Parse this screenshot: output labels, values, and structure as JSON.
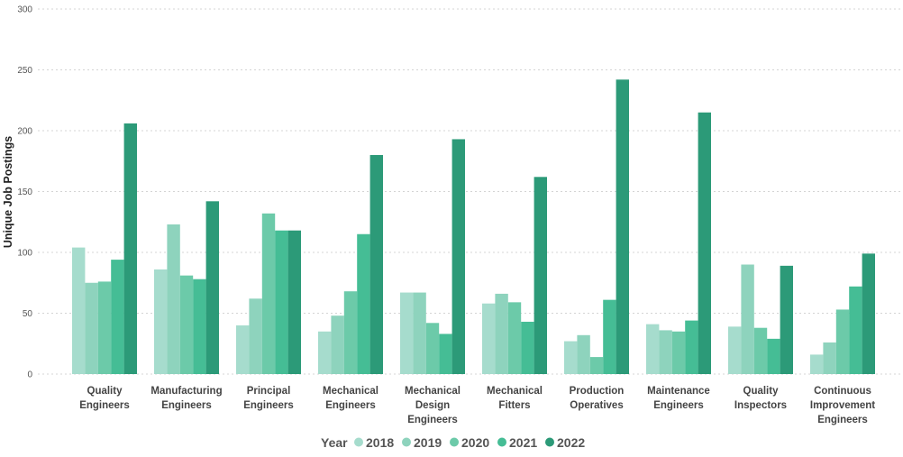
{
  "chart_data": {
    "type": "bar",
    "ylabel": "Unique Job Postings",
    "xlabel": "",
    "ylim": [
      0,
      300
    ],
    "yticks": [
      0,
      50,
      100,
      150,
      200,
      250,
      300
    ],
    "grid": true,
    "legend_position": "bottom",
    "legend_title": "Year",
    "categories": [
      [
        "Quality",
        "Engineers"
      ],
      [
        "Manufacturing",
        "Engineers"
      ],
      [
        "Principal",
        "Engineers"
      ],
      [
        "Mechanical",
        "Engineers"
      ],
      [
        "Mechanical",
        "Design",
        "Engineers"
      ],
      [
        "Mechanical",
        "Fitters"
      ],
      [
        "Production",
        "Operatives"
      ],
      [
        "Maintenance",
        "Engineers"
      ],
      [
        "Quality",
        "Inspectors"
      ],
      [
        "Continuous",
        "Improvement",
        "Engineers"
      ]
    ],
    "series": [
      {
        "name": "2018",
        "color": "#a6dccd",
        "values": [
          104,
          86,
          40,
          35,
          67,
          58,
          27,
          41,
          39,
          16
        ]
      },
      {
        "name": "2019",
        "color": "#8ed3bd",
        "values": [
          75,
          123,
          62,
          48,
          67,
          66,
          32,
          36,
          90,
          26
        ]
      },
      {
        "name": "2020",
        "color": "#6ccaa9",
        "values": [
          76,
          81,
          132,
          68,
          42,
          59,
          14,
          35,
          38,
          53
        ]
      },
      {
        "name": "2021",
        "color": "#45bd95",
        "values": [
          94,
          78,
          118,
          115,
          33,
          43,
          61,
          44,
          29,
          72
        ]
      },
      {
        "name": "2022",
        "color": "#2c9a78",
        "values": [
          206,
          142,
          118,
          180,
          193,
          162,
          242,
          215,
          89,
          99
        ]
      }
    ]
  }
}
